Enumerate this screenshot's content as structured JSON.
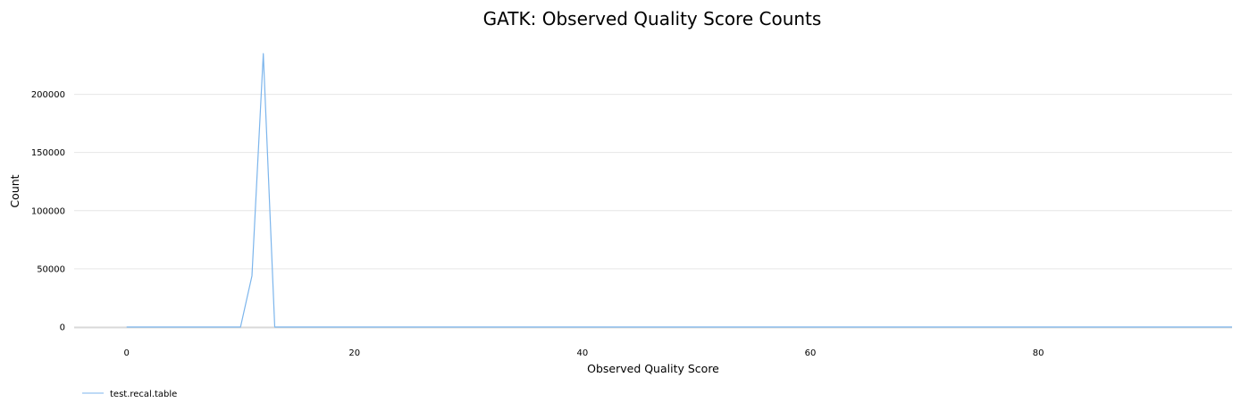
{
  "chart_data": {
    "type": "line",
    "title": "GATK: Observed Quality Score Counts",
    "xlabel": "Observed Quality Score",
    "ylabel": "Count",
    "xlim": [
      -4.6,
      97
    ],
    "ylim": [
      0,
      235000
    ],
    "x_ticks": [
      0,
      20,
      40,
      60,
      80
    ],
    "y_ticks": [
      0,
      50000,
      100000,
      150000,
      200000
    ],
    "grid": "horizontal",
    "legend_position": "bottom-left",
    "series": [
      {
        "name": "test.recal.table",
        "color": "#7cb5ec",
        "points": [
          [
            0,
            0
          ],
          [
            10,
            0
          ],
          [
            11,
            44000
          ],
          [
            12,
            235000
          ],
          [
            13,
            0
          ],
          [
            97,
            0
          ]
        ]
      }
    ]
  },
  "colors": {
    "grid": "#e6e6e6",
    "axis": "#d9d9d9",
    "series": "#7cb5ec"
  }
}
